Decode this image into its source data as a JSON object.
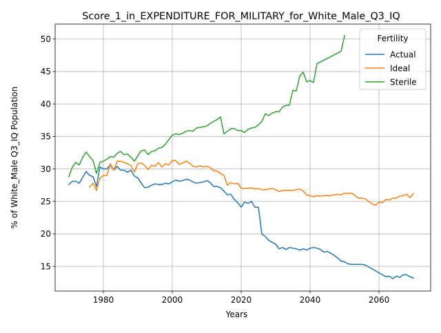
{
  "chart_data": {
    "type": "line",
    "title": "Score_1_in_EXPENDITURE_FOR_MILITARY_for_White_Male_Q3_IQ",
    "xlabel": "Years",
    "ylabel": "% of White_Male Q3_IQ Population",
    "xlim": [
      1966,
      2075
    ],
    "ylim": [
      11.2,
      52.3
    ],
    "xticks": [
      1980,
      2000,
      2020,
      2040,
      2060
    ],
    "yticks": [
      15,
      20,
      25,
      30,
      35,
      40,
      45,
      50
    ],
    "grid": true,
    "legend": {
      "title": "Fertility",
      "position": "top-right"
    },
    "series": [
      {
        "name": "Actual",
        "color": "#1f77b4",
        "x": [
          1970,
          1971,
          1972,
          1973,
          1974,
          1975,
          1976,
          1977,
          1978,
          1979,
          1980,
          1981,
          1982,
          1983,
          1984,
          1985,
          1986,
          1987,
          1988,
          1989,
          1990,
          1991,
          1992,
          1993,
          1994,
          1995,
          1996,
          1997,
          1998,
          1999,
          2000,
          2001,
          2002,
          2003,
          2004,
          2005,
          2006,
          2007,
          2008,
          2009,
          2010,
          2011,
          2012,
          2013,
          2014,
          2015,
          2016,
          2017,
          2018,
          2019,
          2020,
          2021,
          2022,
          2023,
          2024,
          2025,
          2026,
          2027,
          2028,
          2029,
          2030,
          2031,
          2032,
          2033,
          2034,
          2035,
          2036,
          2037,
          2038,
          2039,
          2040,
          2041,
          2042,
          2043,
          2044,
          2045,
          2046,
          2047,
          2048,
          2049,
          2050,
          2051,
          2052,
          2053,
          2054,
          2055,
          2056,
          2057,
          2058,
          2059,
          2060,
          2061,
          2062,
          2063,
          2064,
          2065,
          2066,
          2067,
          2068,
          2069,
          2070
        ],
        "y": [
          27.6,
          28.1,
          28.1,
          27.8,
          28.7,
          29.6,
          29.0,
          28.8,
          27.3,
          30.3,
          30.0,
          30.0,
          30.6,
          29.8,
          30.4,
          29.8,
          29.8,
          29.5,
          29.8,
          28.9,
          28.6,
          27.8,
          27.1,
          27.2,
          27.5,
          27.7,
          27.6,
          27.6,
          27.8,
          27.7,
          28.0,
          28.3,
          28.1,
          28.2,
          28.4,
          28.3,
          28.0,
          27.8,
          27.9,
          28.0,
          28.2,
          27.9,
          27.3,
          27.3,
          27.1,
          26.6,
          26.0,
          26.1,
          25.3,
          24.8,
          24.1,
          24.9,
          24.7,
          25.0,
          24.1,
          24.1,
          20.0,
          19.6,
          19.0,
          18.7,
          18.4,
          17.7,
          17.9,
          17.6,
          17.9,
          17.8,
          17.7,
          17.5,
          17.7,
          17.5,
          17.8,
          17.9,
          17.8,
          17.6,
          17.2,
          17.3,
          17.0,
          16.7,
          16.3,
          15.8,
          15.7,
          15.4,
          15.3,
          15.3,
          15.3,
          15.3,
          15.2,
          14.9,
          14.6,
          14.3,
          14.0,
          13.7,
          13.4,
          13.5,
          13.1,
          13.5,
          13.3,
          13.7,
          13.7,
          13.4,
          13.2
        ]
      },
      {
        "name": "Ideal",
        "color": "#ff7f0e",
        "x": [
          1976,
          1977,
          1978,
          1979,
          1980,
          1981,
          1982,
          1983,
          1984,
          1985,
          1986,
          1987,
          1988,
          1989,
          1990,
          1991,
          1992,
          1993,
          1994,
          1995,
          1996,
          1997,
          1998,
          1999,
          2000,
          2001,
          2002,
          2003,
          2004,
          2005,
          2006,
          2007,
          2008,
          2009,
          2010,
          2011,
          2012,
          2013,
          2014,
          2015,
          2016,
          2017,
          2018,
          2019,
          2020,
          2021,
          2022,
          2023,
          2024,
          2025,
          2026,
          2027,
          2028,
          2029,
          2030,
          2031,
          2032,
          2033,
          2034,
          2035,
          2036,
          2037,
          2038,
          2039,
          2040,
          2041,
          2042,
          2043,
          2044,
          2045,
          2046,
          2047,
          2048,
          2049,
          2050,
          2051,
          2052,
          2053,
          2054,
          2055,
          2056,
          2057,
          2058,
          2059,
          2060,
          2061,
          2062,
          2063,
          2064,
          2065,
          2066,
          2067,
          2068,
          2069,
          2070
        ],
        "y": [
          27.2,
          27.8,
          26.7,
          28.6,
          29.0,
          29.0,
          30.8,
          29.8,
          31.2,
          31.2,
          31.0,
          30.8,
          30.5,
          29.5,
          30.8,
          30.9,
          30.5,
          29.9,
          30.6,
          30.4,
          31.0,
          30.3,
          30.8,
          30.6,
          31.3,
          31.3,
          30.7,
          30.9,
          31.2,
          30.9,
          30.4,
          30.3,
          30.5,
          30.3,
          30.4,
          30.2,
          29.7,
          29.7,
          29.3,
          29.0,
          27.5,
          27.9,
          27.7,
          27.8,
          27.0,
          27.0,
          27.0,
          27.1,
          26.9,
          27.0,
          26.8,
          26.8,
          26.9,
          27.0,
          26.8,
          26.5,
          26.7,
          26.7,
          26.7,
          26.7,
          26.8,
          26.9,
          26.6,
          26.0,
          25.9,
          25.7,
          25.9,
          25.8,
          25.9,
          25.9,
          25.9,
          26.0,
          26.1,
          26.0,
          26.3,
          26.2,
          26.3,
          25.9,
          25.5,
          25.5,
          25.4,
          25.0,
          24.6,
          24.4,
          24.9,
          24.8,
          25.3,
          25.2,
          25.5,
          25.5,
          25.8,
          25.9,
          26.1,
          25.6,
          26.2
        ]
      },
      {
        "name": "Sterile",
        "color": "#2ca02c",
        "x": [
          1970,
          1971,
          1972,
          1973,
          1974,
          1975,
          1976,
          1977,
          1978,
          1979,
          1980,
          1981,
          1982,
          1983,
          1984,
          1985,
          1986,
          1987,
          1988,
          1989,
          1990,
          1991,
          1992,
          1993,
          1994,
          1995,
          1996,
          1997,
          1998,
          1999,
          2000,
          2001,
          2002,
          2003,
          2004,
          2005,
          2006,
          2007,
          2008,
          2009,
          2010,
          2011,
          2012,
          2013,
          2014,
          2015,
          2016,
          2017,
          2018,
          2019,
          2020,
          2021,
          2022,
          2023,
          2024,
          2025,
          2026,
          2027,
          2028,
          2029,
          2030,
          2031,
          2032,
          2033,
          2034,
          2035,
          2036,
          2037,
          2038,
          2039,
          2040,
          2041,
          2042,
          2049,
          2050
        ],
        "y": [
          28.8,
          30.3,
          31.0,
          30.6,
          31.8,
          32.6,
          31.9,
          31.3,
          29.3,
          31.0,
          31.2,
          31.5,
          31.9,
          31.8,
          32.4,
          32.7,
          32.2,
          32.3,
          31.8,
          31.2,
          32.0,
          32.8,
          32.9,
          32.2,
          32.7,
          32.8,
          33.2,
          33.3,
          33.8,
          34.5,
          35.2,
          35.4,
          35.3,
          35.5,
          35.8,
          35.9,
          35.8,
          36.3,
          36.4,
          36.5,
          36.6,
          37.0,
          37.3,
          37.6,
          38.0,
          35.4,
          35.8,
          36.2,
          36.2,
          35.9,
          35.9,
          35.6,
          36.1,
          36.3,
          36.4,
          36.8,
          37.3,
          38.5,
          38.2,
          38.6,
          38.8,
          38.8,
          39.5,
          39.8,
          39.8,
          42.1,
          42.0,
          44.3,
          44.9,
          43.4,
          43.6,
          43.3,
          46.2,
          48.1,
          50.5
        ]
      }
    ]
  }
}
